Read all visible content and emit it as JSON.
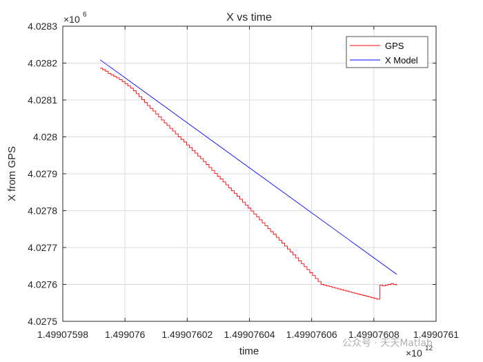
{
  "chart_data": {
    "type": "line",
    "title": "X vs time",
    "xlabel": "time",
    "ylabel": "X from GPS",
    "x_multiplier_label": "×10",
    "x_multiplier_exp": "12",
    "y_multiplier_label": "×10",
    "y_multiplier_exp": "6",
    "x_ticks": [
      1.49907598,
      1.499076,
      1.49907602,
      1.49907604,
      1.49907606,
      1.49907608,
      1.4990761
    ],
    "x_tick_labels": [
      "1.49907598",
      "1.499076",
      "1.49907602",
      "1.49907604",
      "1.49907606",
      "1.49907608",
      "1.4990761"
    ],
    "y_ticks": [
      4.0275,
      4.0276,
      4.0277,
      4.0278,
      4.0279,
      4.028,
      4.0281,
      4.0282,
      4.0283
    ],
    "y_tick_labels": [
      "4.0275",
      "4.0276",
      "4.0277",
      "4.0278",
      "4.0279",
      "4.028",
      "4.0281",
      "4.0282",
      "4.0283"
    ],
    "xlim": [
      1.49907598,
      1.4990761
    ],
    "ylim": [
      4.0275,
      4.0283
    ],
    "grid": true,
    "legend_position": "top-right",
    "series": [
      {
        "name": "GPS",
        "color": "#ff0000",
        "step": true,
        "x": [
          1.499075992,
          1.4990759928,
          1.4990759937,
          1.4990759946,
          1.4990759955,
          1.4990759964,
          1.4990759973,
          1.4990759982,
          1.4990759991,
          1.499076,
          1.4990760009,
          1.4990760018,
          1.4990760027,
          1.4990760036,
          1.4990760045,
          1.4990760054,
          1.4990760063,
          1.4990760072,
          1.4990760081,
          1.499076009,
          1.4990760099,
          1.4990760108,
          1.4990760117,
          1.4990760126,
          1.4990760135,
          1.4990760144,
          1.4990760153,
          1.4990760162,
          1.4990760171,
          1.499076018,
          1.4990760189,
          1.4990760198,
          1.4990760207,
          1.4990760216,
          1.4990760225,
          1.4990760234,
          1.4990760243,
          1.4990760252,
          1.4990760261,
          1.499076027,
          1.4990760279,
          1.4990760288,
          1.4990760297,
          1.4990760306,
          1.4990760315,
          1.4990760324,
          1.4990760333,
          1.4990760342,
          1.4990760351,
          1.499076036,
          1.4990760369,
          1.4990760378,
          1.4990760387,
          1.4990760396,
          1.4990760405,
          1.4990760414,
          1.4990760423,
          1.4990760432,
          1.4990760441,
          1.499076045,
          1.4990760459,
          1.4990760468,
          1.4990760477,
          1.4990760486,
          1.4990760495,
          1.4990760504,
          1.4990760513,
          1.4990760522,
          1.4990760531,
          1.499076054,
          1.4990760549,
          1.4990760558,
          1.4990760567,
          1.4990760576,
          1.4990760585,
          1.4990760594,
          1.4990760603,
          1.4990760612,
          1.4990760621,
          1.499076063,
          1.4990760639,
          1.4990760648,
          1.4990760657,
          1.4990760666,
          1.4990760675,
          1.4990760684,
          1.4990760693,
          1.4990760702,
          1.4990760711,
          1.499076072,
          1.4990760729,
          1.4990760738,
          1.4990760747,
          1.4990760756,
          1.4990760765,
          1.4990760774,
          1.4990760783,
          1.4990760792,
          1.4990760801,
          1.499076081,
          1.4990760819,
          1.4990760828,
          1.4990760837,
          1.4990760846,
          1.4990760855,
          1.4990760864,
          1.4990760873
        ],
        "y": [
          4.028186,
          4.028182,
          4.028178,
          4.028172,
          4.028168,
          4.028164,
          4.02816,
          4.028155,
          4.02815,
          4.028144,
          4.028138,
          4.028132,
          4.028125,
          4.028117,
          4.028109,
          4.028101,
          4.028093,
          4.028085,
          4.028077,
          4.02807,
          4.028062,
          4.028054,
          4.028046,
          4.028038,
          4.028031,
          4.028023,
          4.028016,
          4.028008,
          4.028,
          4.027993,
          4.027986,
          4.027978,
          4.027971,
          4.027963,
          4.027956,
          4.027948,
          4.027941,
          4.027933,
          4.027925,
          4.027917,
          4.027909,
          4.027901,
          4.027893,
          4.027886,
          4.027878,
          4.02787,
          4.027862,
          4.027854,
          4.027847,
          4.027839,
          4.027831,
          4.027823,
          4.027815,
          4.027807,
          4.027799,
          4.027791,
          4.027783,
          4.027775,
          4.027767,
          4.027759,
          4.027751,
          4.027743,
          4.027736,
          4.027728,
          4.02772,
          4.027712,
          4.027704,
          4.027696,
          4.027688,
          4.02768,
          4.027672,
          4.027664,
          4.027656,
          4.027648,
          4.02764,
          4.027632,
          4.027624,
          4.027616,
          4.027608,
          4.0276,
          4.027598,
          4.027596,
          4.027594,
          4.027592,
          4.02759,
          4.027588,
          4.027586,
          4.027584,
          4.027582,
          4.02758,
          4.027578,
          4.027576,
          4.027574,
          4.027572,
          4.02757,
          4.027568,
          4.027566,
          4.027564,
          4.027562,
          4.02756,
          4.027598,
          4.027596,
          4.027598,
          4.0276,
          4.027602,
          4.0276,
          4.027598
        ]
      },
      {
        "name": "X Model",
        "color": "#0000ff",
        "step": false,
        "x": [
          1.499075992,
          1.4990760874
        ],
        "y": [
          4.028209,
          4.027627
        ]
      }
    ]
  },
  "watermark": "公众号 · 天天Matlab"
}
